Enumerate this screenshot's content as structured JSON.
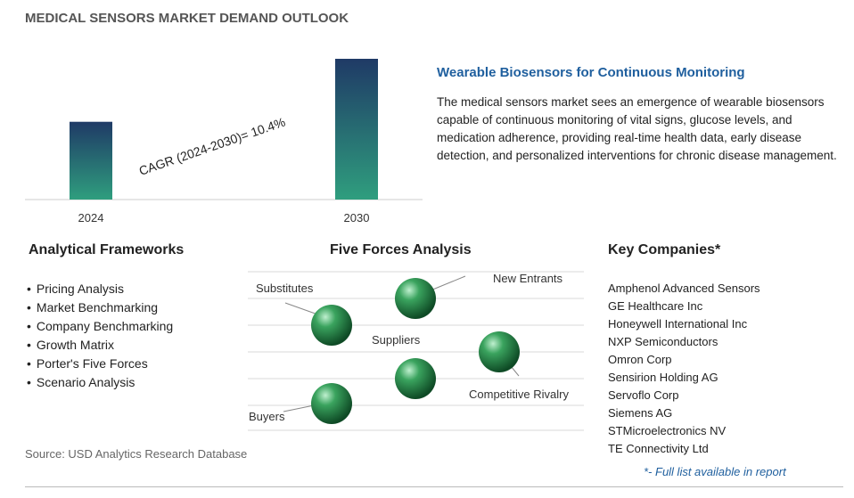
{
  "title": "MEDICAL SENSORS MARKET DEMAND OUTLOOK",
  "chart_data": {
    "type": "bar",
    "categories": [
      "2024",
      "2030"
    ],
    "values": [
      1.0,
      1.81
    ],
    "annotation": "CAGR (2024-2030)=  10.4%",
    "colors": [
      "#2f9e7e",
      "#1f3a66"
    ]
  },
  "insight": {
    "title": "Wearable Biosensors for Continuous Monitoring",
    "body": "The medical sensors market sees an emergence of wearable biosensors capable of continuous monitoring of vital signs, glucose levels, and medication adherence, providing real-time health data, early disease detection, and personalized interventions for chronic disease management."
  },
  "frameworks": {
    "title": "Analytical Frameworks",
    "items": [
      "Pricing Analysis",
      "Market Benchmarking",
      "Company Benchmarking",
      "Growth Matrix",
      "Porter's Five Forces",
      "Scenario Analysis"
    ]
  },
  "five_forces": {
    "title": "Five Forces Analysis",
    "labels": [
      "Substitutes",
      "New Entrants",
      "Suppliers",
      "Competitive Rivalry",
      "Buyers"
    ]
  },
  "companies": {
    "title": "Key Companies*",
    "items": [
      "Amphenol Advanced Sensors",
      "GE Healthcare Inc",
      "Honeywell International Inc",
      "NXP Semiconductors",
      "Omron Corp",
      "Sensirion Holding AG",
      "Servoflo Corp",
      "Siemens AG",
      "STMicroelectronics NV",
      "TE Connectivity Ltd"
    ],
    "footnote": "*- Full list available in report"
  },
  "source": "Source: USD Analytics Research Database"
}
